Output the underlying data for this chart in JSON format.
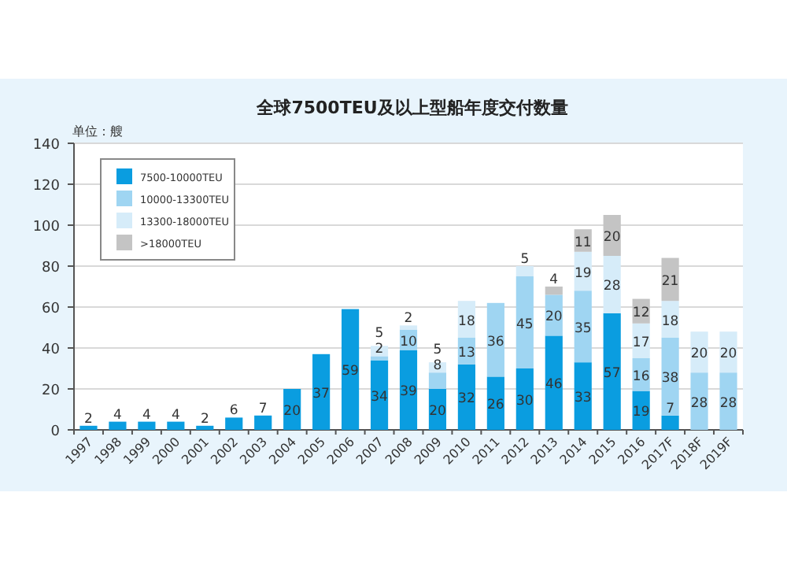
{
  "chart_data": {
    "type": "bar",
    "stacked": true,
    "title": "全球7500TEU及以上型船年度交付数量",
    "ylabel": "单位：艘",
    "categories": [
      "1997",
      "1998",
      "1999",
      "2000",
      "2001",
      "2002",
      "2003",
      "2004",
      "2005",
      "2006",
      "2007",
      "2008",
      "2009",
      "2010",
      "2011",
      "2012",
      "2013",
      "2014",
      "2015",
      "2016",
      "2017F",
      "2018F",
      "2019F"
    ],
    "series": [
      {
        "name": "7500-10000TEU",
        "color": "#0a9de0",
        "values": [
          2,
          4,
          4,
          4,
          2,
          6,
          7,
          20,
          37,
          59,
          34,
          39,
          20,
          32,
          26,
          30,
          46,
          33,
          57,
          19,
          7,
          null,
          null
        ]
      },
      {
        "name": "10000-13300TEU",
        "color": "#9fd5f2",
        "values": [
          null,
          null,
          null,
          null,
          null,
          null,
          null,
          null,
          null,
          null,
          2,
          10,
          8,
          13,
          36,
          45,
          20,
          35,
          null,
          16,
          38,
          28,
          28
        ]
      },
      {
        "name": "13300-18000TEU",
        "color": "#d6ecf9",
        "values": [
          null,
          null,
          null,
          null,
          null,
          null,
          null,
          null,
          null,
          null,
          5,
          2,
          5,
          18,
          null,
          5,
          null,
          19,
          28,
          17,
          18,
          20,
          20
        ]
      },
      {
        "name": ">18000TEU",
        "color": "#c4c4c4",
        "values": [
          null,
          null,
          null,
          null,
          null,
          null,
          null,
          null,
          null,
          null,
          null,
          null,
          null,
          null,
          null,
          null,
          4,
          11,
          20,
          12,
          21,
          null,
          null
        ]
      }
    ],
    "ylim": [
      0,
      140
    ],
    "yticks": [
      0,
      20,
      40,
      60,
      80,
      100,
      120,
      140
    ],
    "grid": "y",
    "legend": "top left",
    "data_labels": true
  }
}
